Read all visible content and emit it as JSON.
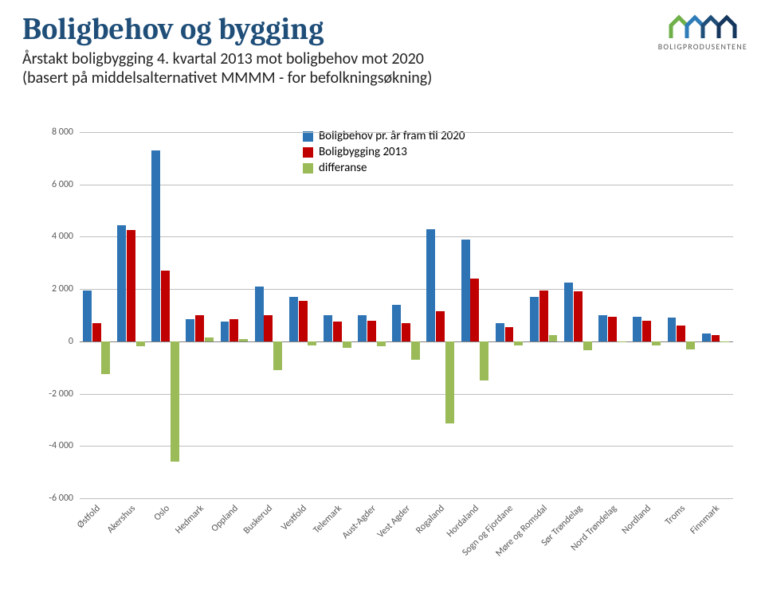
{
  "header": {
    "title": "Boligbehov og bygging",
    "subtitle_line1": "Årstakt boligbygging 4. kvartal 2013 mot boligbehov mot 2020",
    "subtitle_line2": "(basert på middelsalternativet MMMM - for befolkningsøkning)",
    "logo_text": "BOLIGPRODUSENTENE"
  },
  "chart": {
    "type": "grouped-bar",
    "y": {
      "min": -6000,
      "max": 8000,
      "tick_step": 2000,
      "tick_format": "space-thousand"
    },
    "grid_color": "#bfbfbf",
    "baseline_color": "#808080",
    "background_color": "#ffffff",
    "label_fontsize": 12,
    "label_color": "#595959",
    "bar_group_width": 0.82,
    "bar_gap": 0.02,
    "series": [
      {
        "key": "behov",
        "label": "Boligbehov pr. år fram til 2020",
        "color": "#2e74b5"
      },
      {
        "key": "bygging",
        "label": "Boligbygging 2013",
        "color": "#c00000"
      },
      {
        "key": "differanse",
        "label": "differanse",
        "color": "#9bbb59"
      }
    ],
    "categories": [
      "Østfold",
      "Akershus",
      "Oslo",
      "Hedmark",
      "Oppland",
      "Buskerud",
      "Vestfold",
      "Telemark",
      "Aust-Agder",
      "Vest Agder",
      "Rogaland",
      "Hordaland",
      "Sogn og Fjordane",
      "Møre og Romsdal",
      "Sør Trøndelag",
      "Nord Trøndelag",
      "Nordland",
      "Troms",
      "Finnmark"
    ],
    "data": {
      "behov": [
        1950,
        4450,
        7300,
        850,
        750,
        2100,
        1700,
        1000,
        1000,
        1400,
        4300,
        3900,
        700,
        1700,
        2250,
        1000,
        950,
        900,
        300
      ],
      "bygging": [
        700,
        4250,
        2700,
        1000,
        850,
        1000,
        1550,
        750,
        800,
        700,
        1150,
        2400,
        550,
        1950,
        1900,
        950,
        800,
        600,
        250
      ],
      "differanse": [
        -1250,
        -200,
        -4600,
        150,
        100,
        -1100,
        -150,
        -250,
        -200,
        -700,
        -3150,
        -1500,
        -150,
        250,
        -350,
        -50,
        -150,
        -300,
        -50
      ]
    }
  }
}
